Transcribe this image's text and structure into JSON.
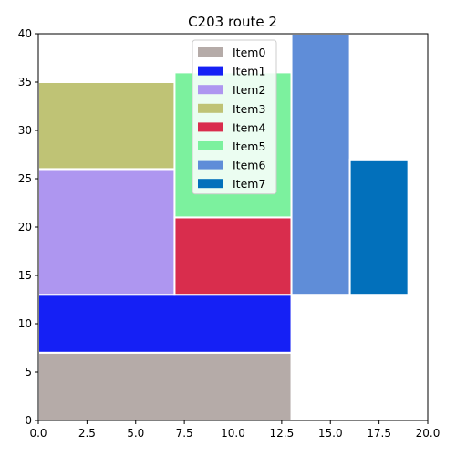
{
  "chart_data": {
    "type": "bar",
    "subtype": "rectangle-packing",
    "title": "C203 route 2",
    "xlabel": "",
    "ylabel": "",
    "xlim": [
      0,
      20
    ],
    "ylim": [
      0,
      40
    ],
    "xticks": [
      0,
      2.5,
      5,
      7.5,
      10,
      12.5,
      15,
      17.5,
      20
    ],
    "xtick_labels": [
      "0.0",
      "2.5",
      "5.0",
      "7.5",
      "10.0",
      "12.5",
      "15.0",
      "17.5",
      "20.0"
    ],
    "yticks": [
      0,
      5,
      10,
      15,
      20,
      25,
      30,
      35,
      40
    ],
    "ytick_labels": [
      "0",
      "5",
      "10",
      "15",
      "20",
      "25",
      "30",
      "35",
      "40"
    ],
    "grid": false,
    "legend_position": "top-center",
    "series": [
      {
        "name": "Item0",
        "color": "#b5aba8",
        "x0": 0,
        "x1": 13,
        "y0": 0,
        "y1": 7
      },
      {
        "name": "Item1",
        "color": "#1520f5",
        "x0": 0,
        "x1": 13,
        "y0": 7,
        "y1": 13
      },
      {
        "name": "Item2",
        "color": "#ae96f0",
        "x0": 0,
        "x1": 7,
        "y0": 13,
        "y1": 26
      },
      {
        "name": "Item3",
        "color": "#bfc375",
        "x0": 0,
        "x1": 7,
        "y0": 26,
        "y1": 35
      },
      {
        "name": "Item4",
        "color": "#d92d4d",
        "x0": 7,
        "x1": 13,
        "y0": 13,
        "y1": 21
      },
      {
        "name": "Item5",
        "color": "#7cf19e",
        "x0": 7,
        "x1": 13,
        "y0": 21,
        "y1": 36
      },
      {
        "name": "Item6",
        "color": "#5f8dd8",
        "x0": 13,
        "x1": 16,
        "y0": 13,
        "y1": 40
      },
      {
        "name": "Item7",
        "color": "#0270bb",
        "x0": 16,
        "x1": 19,
        "y0": 13,
        "y1": 27
      }
    ]
  }
}
